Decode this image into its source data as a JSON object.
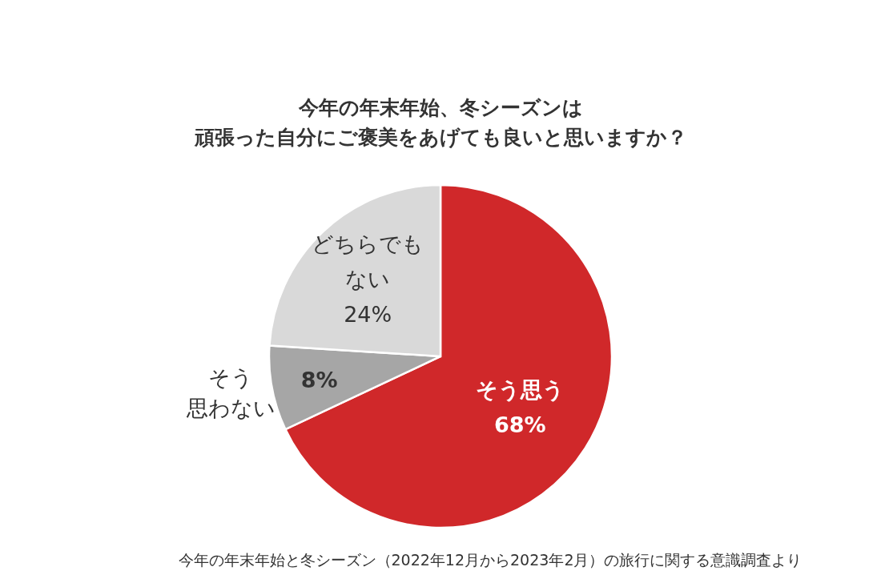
{
  "chart_data": {
    "type": "pie",
    "title": "今年の年末年始、冬シーズンは頑張った自分にご褒美をあげても良いと思いますか？",
    "categories": [
      "そう思う",
      "そう思わない",
      "どちらでもない"
    ],
    "values": [
      68,
      8,
      24
    ],
    "value_labels": [
      "68%",
      "8%",
      "24%"
    ],
    "colors": [
      "#d0282a",
      "#a6a6a6",
      "#d9d9d9"
    ],
    "legend": false,
    "annotations": [
      "今年の年末年始と冬シーズン（2022年12月から2023年2月）の旅行に関する意識調査より"
    ]
  }
}
